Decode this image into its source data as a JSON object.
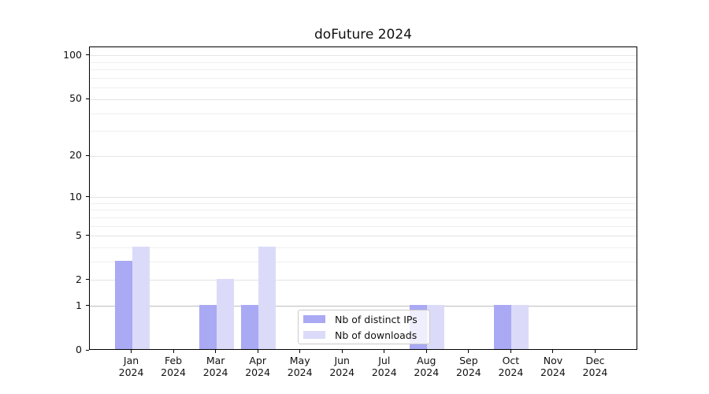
{
  "title": "doFuture 2024",
  "chart_data": {
    "type": "bar",
    "title": "doFuture 2024",
    "categories": [
      "Jan",
      "Feb",
      "Mar",
      "Apr",
      "May",
      "Jun",
      "Jul",
      "Aug",
      "Sep",
      "Oct",
      "Nov",
      "Dec"
    ],
    "category_year": "2024",
    "series": [
      {
        "name": "Nb of distinct IPs",
        "color": "#a9a9f4",
        "values": [
          3,
          0,
          1,
          1,
          0,
          0,
          0,
          1,
          0,
          1,
          0,
          0
        ]
      },
      {
        "name": "Nb of downloads",
        "color": "#dbdbf9",
        "values": [
          4,
          0,
          2,
          4,
          0,
          0,
          0,
          1,
          0,
          1,
          0,
          0
        ]
      }
    ],
    "xlabel": "",
    "ylabel": "",
    "yscale": "log1p",
    "ylim": [
      0,
      114
    ],
    "y_ticks": [
      0,
      1,
      2,
      5,
      10,
      20,
      50,
      100
    ],
    "y_minor_gridlines": [
      3,
      4,
      6,
      7,
      8,
      9,
      30,
      40,
      60,
      70,
      80,
      90
    ],
    "grid": true,
    "legend_position": "lower-center",
    "legend_transparent": true
  },
  "colors": {
    "background": "#ffffff",
    "frame": "#000000",
    "text": "#111111",
    "grid_major": "#e4e4e4",
    "grid_minor": "#efefef",
    "grid_level1": "#bdbdbd",
    "legend_border": "#cbcbcb"
  }
}
